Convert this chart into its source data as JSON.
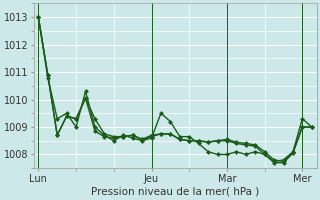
{
  "background_color": "#cce8e8",
  "plot_bg_color": "#cce8e8",
  "grid_color": "#ffffff",
  "line_color": "#1a5c1a",
  "xlabel": "Pression niveau de la mer( hPa )",
  "ylim": [
    1007.5,
    1013.5
  ],
  "yticks": [
    1008,
    1009,
    1010,
    1011,
    1012,
    1013
  ],
  "xtick_labels": [
    "Lun",
    "Jeu",
    "Mar",
    "Mer"
  ],
  "xtick_positions": [
    0,
    12,
    20,
    28
  ],
  "vline_positions": [
    0,
    12,
    20,
    28
  ],
  "series1": [
    1013.0,
    1010.8,
    1009.3,
    1009.5,
    1009.0,
    1010.3,
    1009.0,
    1008.7,
    1008.5,
    1008.7,
    1008.6,
    1008.5,
    1008.6,
    1009.5,
    1009.2,
    1008.65,
    1008.65,
    1008.4,
    1008.1,
    1008.0,
    1008.0,
    1008.1,
    1008.0,
    1008.1,
    1008.0,
    1007.75,
    1007.8,
    1008.1,
    1009.3,
    1009.0
  ],
  "series2": [
    1013.0,
    1010.9,
    1008.7,
    1009.4,
    1009.3,
    1010.05,
    1008.85,
    1008.65,
    1008.6,
    1008.65,
    1008.7,
    1008.55,
    1008.65,
    1008.75,
    1008.75,
    1008.55,
    1008.5,
    1008.5,
    1008.45,
    1008.5,
    1008.5,
    1008.4,
    1008.35,
    1008.3,
    1008.0,
    1007.7,
    1007.7,
    1008.05,
    1009.0,
    1009.0
  ],
  "series3": [
    1013.0,
    1010.9,
    1008.7,
    1009.4,
    1009.3,
    1010.05,
    1009.3,
    1008.75,
    1008.65,
    1008.65,
    1008.7,
    1008.55,
    1008.7,
    1008.75,
    1008.75,
    1008.55,
    1008.5,
    1008.5,
    1008.45,
    1008.5,
    1008.55,
    1008.45,
    1008.4,
    1008.35,
    1008.1,
    1007.8,
    1007.75,
    1008.1,
    1009.0,
    1009.0
  ],
  "n_points": 30,
  "xlim": [
    -0.5,
    29.5
  ],
  "xlabel_fontsize": 7.5,
  "tick_fontsize": 7,
  "linewidth": 1.0,
  "markersize": 2.5
}
